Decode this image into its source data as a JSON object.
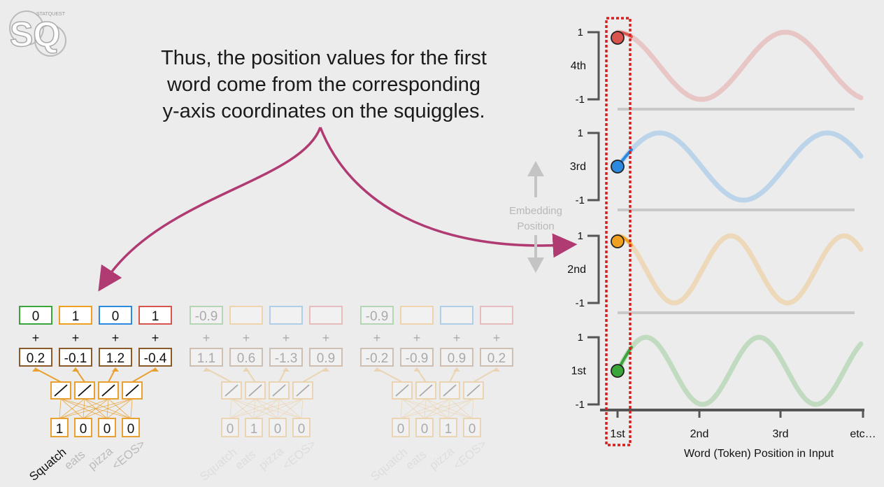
{
  "logo": {
    "letters": "SQ",
    "tagline": "STATQUEST"
  },
  "caption": {
    "line1": "Thus, the position values for the first",
    "line2": "word come from the corresponding",
    "line3": "y-axis coordinates on the squiggles."
  },
  "colors": {
    "dim1": "#d9534f",
    "dim2": "#f0a020",
    "dim3": "#2b8ae0",
    "dim4": "#3aa63a",
    "arrow": "#b03a72",
    "weight_box": "#8b5a2b",
    "network": "#e8a030",
    "highlight": "#d62020"
  },
  "embeddings": [
    {
      "word_bits": [
        "1",
        "0",
        "0",
        "0"
      ],
      "words": [
        "Squatch",
        "eats",
        "pizza",
        "<EOS>"
      ],
      "weights": [
        "0.2",
        "-0.1",
        "1.2",
        "-0.4"
      ],
      "positions": [
        "0",
        "1",
        "0",
        "1"
      ],
      "active": true
    },
    {
      "word_bits": [
        "0",
        "1",
        "0",
        "0"
      ],
      "words": [
        "Squatch",
        "eats",
        "pizza",
        "<EOS>"
      ],
      "weights": [
        "1.1",
        "0.6",
        "-1.3",
        "0.9"
      ],
      "positions": [
        "-0.9",
        "",
        "",
        ""
      ],
      "active": false
    },
    {
      "word_bits": [
        "0",
        "0",
        "1",
        "0"
      ],
      "words": [
        "Squatch",
        "eats",
        "pizza",
        "<EOS>"
      ],
      "weights": [
        "-0.2",
        "-0.9",
        "0.9",
        "0.2"
      ],
      "positions": [
        "-0.9",
        "",
        "",
        ""
      ],
      "active": false
    }
  ],
  "plus": "+",
  "axis_label": {
    "line1": "Embedding",
    "line2": "Position"
  },
  "chart": {
    "rows": [
      {
        "label": "4th",
        "color": "#d9534f",
        "first_value": 1
      },
      {
        "label": "3rd",
        "color": "#2b8ae0",
        "first_value": 0
      },
      {
        "label": "2nd",
        "color": "#f0a020",
        "first_value": 1
      },
      {
        "label": "1st",
        "color": "#3aa63a",
        "first_value": 0
      }
    ],
    "y_tick_top": "1",
    "y_tick_bottom": "-1",
    "x_ticks": [
      "1st",
      "2nd",
      "3rd",
      "etc…"
    ],
    "x_label": "Word (Token) Position in Input"
  }
}
